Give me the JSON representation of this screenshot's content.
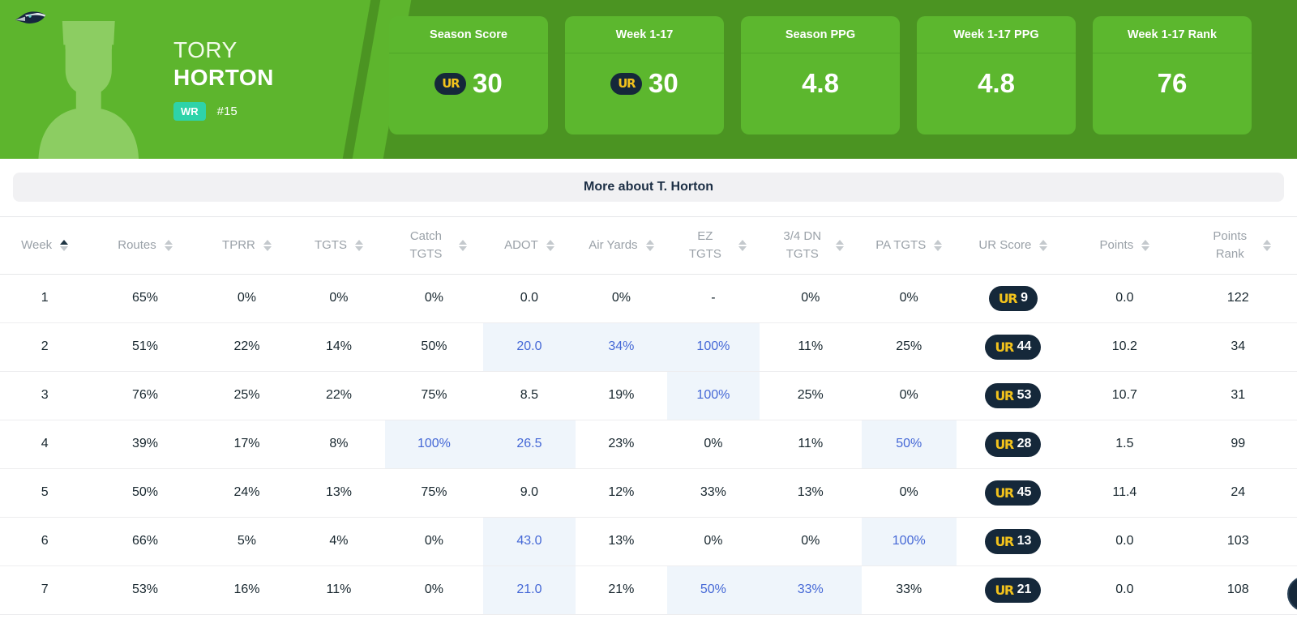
{
  "hero": {
    "team_logo": "seattle-seahawks-logo",
    "first_name": "TORY",
    "last_name": "HORTON",
    "position": "WR",
    "jersey_number": "#15",
    "cards": [
      {
        "key": "season-score",
        "label": "Season Score",
        "value": "30",
        "ur_logo": true
      },
      {
        "key": "week-1-17",
        "label": "Week 1-17",
        "value": "30",
        "ur_logo": true
      },
      {
        "key": "season-ppg",
        "label": "Season PPG",
        "value": "4.8",
        "ur_logo": false
      },
      {
        "key": "week-1-17-ppg",
        "label": "Week 1-17 PPG",
        "value": "4.8",
        "ur_logo": false
      },
      {
        "key": "week-1-17-rank",
        "label": "Week 1-17 Rank",
        "value": "76",
        "ur_logo": false
      }
    ],
    "ur_logo_text": "UR"
  },
  "more_about": {
    "label": "More about T. Horton"
  },
  "table": {
    "columns": [
      {
        "key": "week",
        "label": "Week",
        "sort": "asc",
        "wrap": false
      },
      {
        "key": "routes",
        "label": "Routes",
        "sort": "none",
        "wrap": false
      },
      {
        "key": "tprr",
        "label": "TPRR",
        "sort": "none",
        "wrap": false
      },
      {
        "key": "tgts",
        "label": "TGTS",
        "sort": "none",
        "wrap": false
      },
      {
        "key": "catch-tgts",
        "label": "Catch TGTS",
        "sort": "none",
        "wrap": true
      },
      {
        "key": "adot",
        "label": "ADOT",
        "sort": "none",
        "wrap": false
      },
      {
        "key": "air-yards",
        "label": "Air Yards",
        "sort": "none",
        "wrap": true
      },
      {
        "key": "ez-tgts",
        "label": "EZ TGTS",
        "sort": "none",
        "wrap": true
      },
      {
        "key": "3-4-dn-tgts",
        "label": "3/4 DN TGTS",
        "sort": "none",
        "wrap": true
      },
      {
        "key": "pa-tgts",
        "label": "PA TGTS",
        "sort": "none",
        "wrap": true
      },
      {
        "key": "ur-score",
        "label": "UR Score",
        "sort": "none",
        "wrap": false
      },
      {
        "key": "points",
        "label": "Points",
        "sort": "none",
        "wrap": false
      },
      {
        "key": "points-rank",
        "label": "Points Rank",
        "sort": "none",
        "wrap": true
      }
    ],
    "rows": [
      {
        "cells": [
          {
            "t": "1"
          },
          {
            "t": "65%"
          },
          {
            "t": "0%"
          },
          {
            "t": "0%"
          },
          {
            "t": "0%"
          },
          {
            "t": "0.0"
          },
          {
            "t": "0%"
          },
          {
            "t": "-"
          },
          {
            "t": "0%"
          },
          {
            "t": "0%"
          },
          {
            "ur": "9"
          },
          {
            "t": "0.0"
          },
          {
            "t": "122"
          }
        ]
      },
      {
        "cells": [
          {
            "t": "2"
          },
          {
            "t": "51%"
          },
          {
            "t": "22%"
          },
          {
            "t": "14%"
          },
          {
            "t": "50%"
          },
          {
            "t": "20.0",
            "hl": true
          },
          {
            "t": "34%",
            "hl": true
          },
          {
            "t": "100%",
            "hl": true
          },
          {
            "t": "11%"
          },
          {
            "t": "25%"
          },
          {
            "ur": "44"
          },
          {
            "t": "10.2"
          },
          {
            "t": "34"
          }
        ]
      },
      {
        "cells": [
          {
            "t": "3"
          },
          {
            "t": "76%"
          },
          {
            "t": "25%"
          },
          {
            "t": "22%"
          },
          {
            "t": "75%"
          },
          {
            "t": "8.5"
          },
          {
            "t": "19%"
          },
          {
            "t": "100%",
            "hl": true
          },
          {
            "t": "25%"
          },
          {
            "t": "0%"
          },
          {
            "ur": "53"
          },
          {
            "t": "10.7"
          },
          {
            "t": "31"
          }
        ]
      },
      {
        "cells": [
          {
            "t": "4"
          },
          {
            "t": "39%"
          },
          {
            "t": "17%"
          },
          {
            "t": "8%"
          },
          {
            "t": "100%",
            "hl": true
          },
          {
            "t": "26.5",
            "hl": true
          },
          {
            "t": "23%"
          },
          {
            "t": "0%"
          },
          {
            "t": "11%"
          },
          {
            "t": "50%",
            "hl": true
          },
          {
            "ur": "28"
          },
          {
            "t": "1.5"
          },
          {
            "t": "99"
          }
        ]
      },
      {
        "cells": [
          {
            "t": "5"
          },
          {
            "t": "50%"
          },
          {
            "t": "24%"
          },
          {
            "t": "13%"
          },
          {
            "t": "75%"
          },
          {
            "t": "9.0"
          },
          {
            "t": "12%"
          },
          {
            "t": "33%"
          },
          {
            "t": "13%"
          },
          {
            "t": "0%"
          },
          {
            "ur": "45"
          },
          {
            "t": "11.4"
          },
          {
            "t": "24"
          }
        ]
      },
      {
        "cells": [
          {
            "t": "6"
          },
          {
            "t": "66%"
          },
          {
            "t": "5%"
          },
          {
            "t": "4%"
          },
          {
            "t": "0%"
          },
          {
            "t": "43.0",
            "hl": true
          },
          {
            "t": "13%"
          },
          {
            "t": "0%"
          },
          {
            "t": "0%"
          },
          {
            "t": "100%",
            "hl": true
          },
          {
            "ur": "13"
          },
          {
            "t": "0.0"
          },
          {
            "t": "103"
          }
        ]
      },
      {
        "cells": [
          {
            "t": "7"
          },
          {
            "t": "53%"
          },
          {
            "t": "16%"
          },
          {
            "t": "11%"
          },
          {
            "t": "0%"
          },
          {
            "t": "21.0",
            "hl": true
          },
          {
            "t": "21%"
          },
          {
            "t": "50%",
            "hl": true
          },
          {
            "t": "33%",
            "hl": true
          },
          {
            "t": "33%"
          },
          {
            "ur": "21"
          },
          {
            "t": "0.0"
          },
          {
            "t": "108"
          }
        ]
      }
    ]
  },
  "colors": {
    "green_bright": "#5db52d",
    "green_dark": "#4b9422",
    "silhouette_green": "#8ccd62",
    "badge_teal": "#2ed3a9",
    "pill_navy": "#15283a",
    "ur_yellow": "#f2c21c",
    "highlight_bg": "#eff5fb",
    "highlight_text": "#4568d6",
    "header_gray": "#9aa1a8",
    "cell_text": "#17262e"
  }
}
